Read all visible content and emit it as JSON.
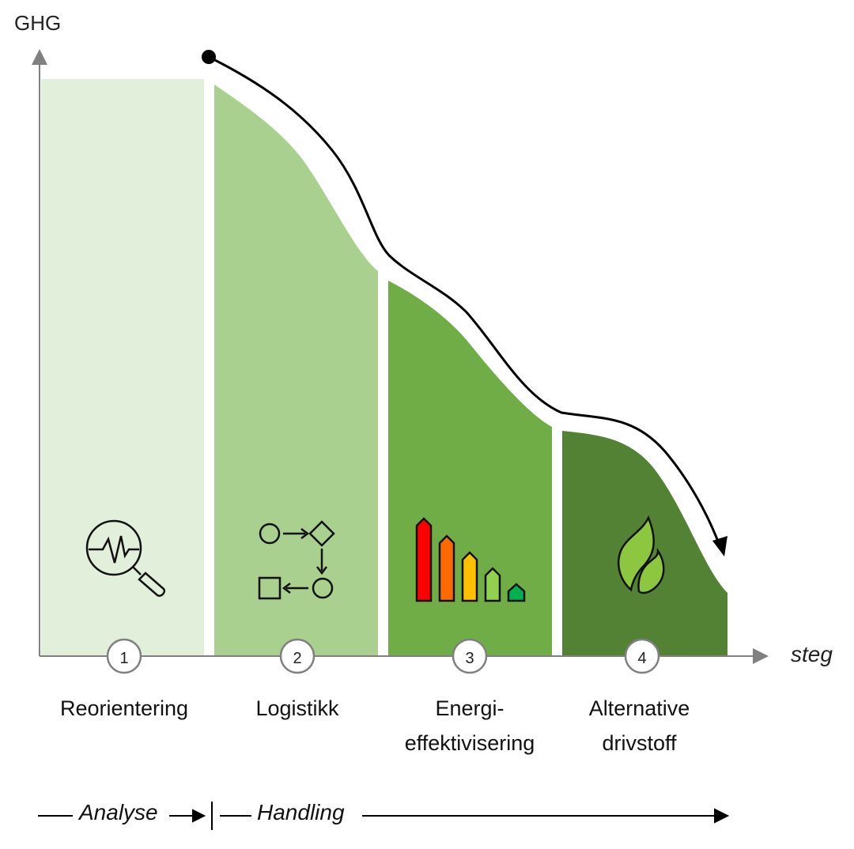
{
  "axes": {
    "y_label": "GHG",
    "x_label": "steg"
  },
  "steps": [
    {
      "number": "1",
      "label": "Reorientering",
      "icon": "magnifier-pulse-icon",
      "color": "#e2efda"
    },
    {
      "number": "2",
      "label": "Logistikk",
      "icon": "process-flow-icon",
      "color": "#a9d08e"
    },
    {
      "number": "3",
      "label": "Energi-\neffektivisering",
      "icon": "energy-rating-icon",
      "color": "#70ad47"
    },
    {
      "number": "4",
      "label": "Alternative\ndrivstoff",
      "icon": "flame-leaf-icon",
      "color": "#548235"
    }
  ],
  "phases": {
    "analysis": "Analyse",
    "action": "Handling"
  },
  "energy_bar_colors": [
    "#ff0000",
    "#ff6a00",
    "#ffc000",
    "#92d050",
    "#00b050"
  ],
  "flame_color": "#8dc63f"
}
